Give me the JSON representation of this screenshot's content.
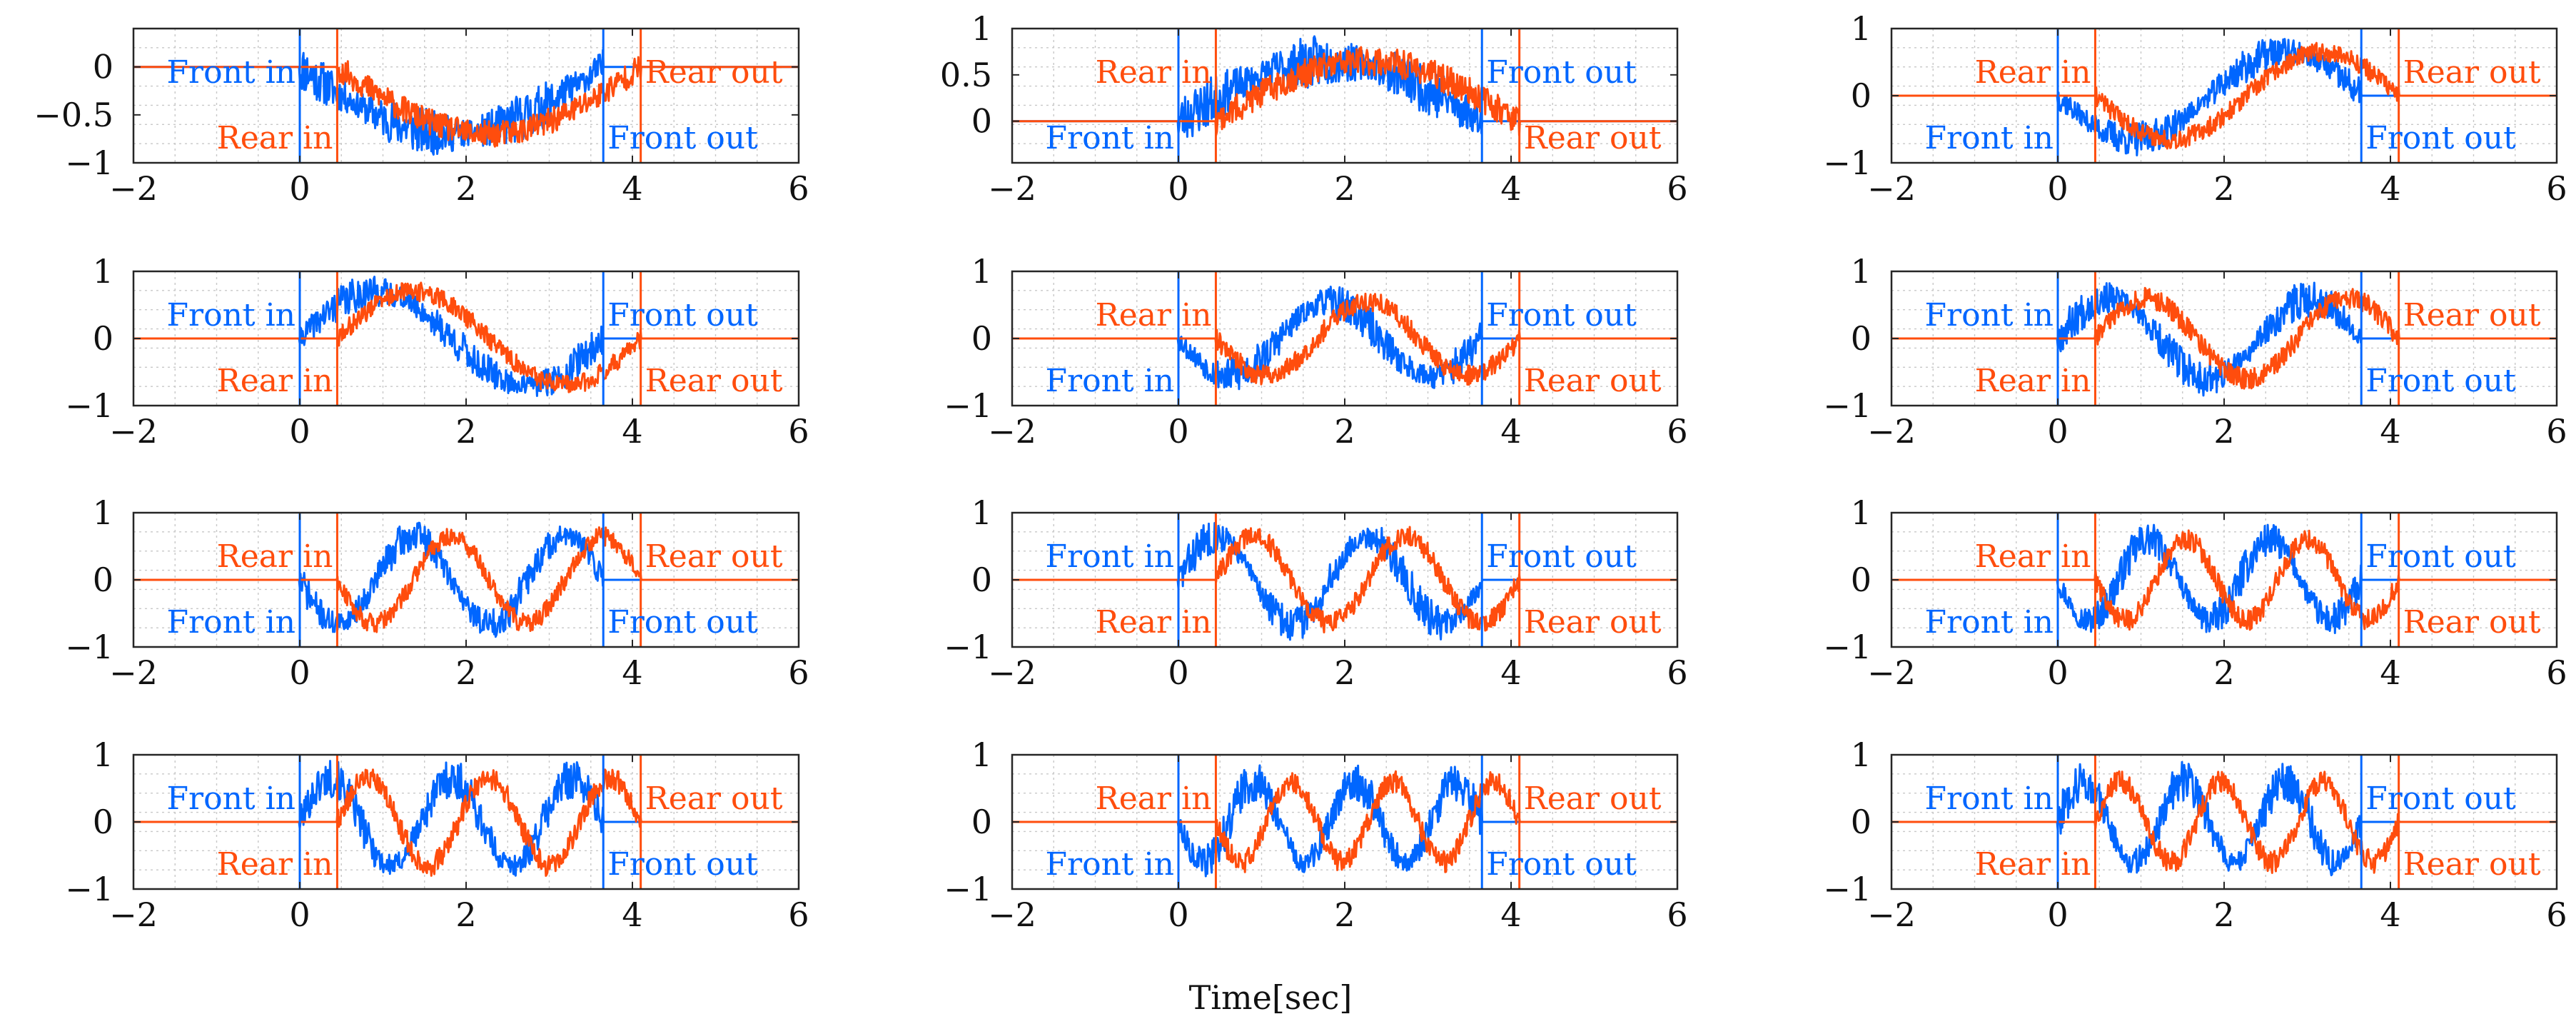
{
  "figure": {
    "xlabel": "Time[sec]",
    "colors": {
      "front": "#0066ff",
      "rear": "#ff4d0d",
      "axis": "#262626",
      "grid": "#c8c8c8"
    }
  },
  "chart_data": [
    {
      "type": "line",
      "panel": "r1c1",
      "xlim": [
        -2,
        6
      ],
      "ylim": [
        -1,
        0.4
      ],
      "xticks": [
        -2,
        0,
        2,
        4,
        6
      ],
      "xtick_labels": [
        "−2",
        "0",
        "2",
        "4",
        "6"
      ],
      "yticks": [
        0,
        -0.5,
        -1
      ],
      "ytick_labels": [
        "0",
        "−0.5",
        "−1"
      ],
      "grid": true,
      "params": {
        "amp": 0.7,
        "cycles": 0.5,
        "sign": -1,
        "noise": 0.25,
        "seed": 11
      },
      "event_lines": {
        "front_in": 0,
        "rear_in": 0.45,
        "front_out": 3.65,
        "rear_out": 4.1
      },
      "annotations": [
        {
          "text": "Front in",
          "series": "front",
          "side": "left",
          "pos": "upper"
        },
        {
          "text": "Rear in",
          "series": "rear",
          "side": "left",
          "pos": "lower"
        },
        {
          "text": "Rear out",
          "series": "rear",
          "side": "right",
          "pos": "upper"
        },
        {
          "text": "Front out",
          "series": "front",
          "side": "right",
          "pos": "lower"
        }
      ],
      "series": [
        {
          "name": "Front",
          "color": "#0066ff"
        },
        {
          "name": "Rear",
          "color": "#ff4d0d"
        }
      ]
    },
    {
      "type": "line",
      "panel": "r1c2",
      "xlim": [
        -2,
        6
      ],
      "ylim": [
        -0.45,
        1
      ],
      "xticks": [
        -2,
        0,
        2,
        4,
        6
      ],
      "xtick_labels": [
        "−2",
        "0",
        "2",
        "4",
        "6"
      ],
      "yticks": [
        1,
        0.5,
        0
      ],
      "ytick_labels": [
        "1",
        "0.5",
        "0"
      ],
      "grid": true,
      "params": {
        "amp": 0.65,
        "cycles": 0.5,
        "sign": 1,
        "noise": 0.28,
        "seed": 23
      },
      "event_lines": {
        "front_in": 0,
        "rear_in": 0.45,
        "front_out": 3.65,
        "rear_out": 4.1
      },
      "annotations": [
        {
          "text": "Rear in",
          "series": "rear",
          "side": "left",
          "pos": "upper"
        },
        {
          "text": "Front in",
          "series": "front",
          "side": "left",
          "pos": "lower"
        },
        {
          "text": "Front out",
          "series": "front",
          "side": "right",
          "pos": "upper"
        },
        {
          "text": "Rear out",
          "series": "rear",
          "side": "right",
          "pos": "lower"
        }
      ],
      "series": [
        {
          "name": "Front",
          "color": "#0066ff"
        },
        {
          "name": "Rear",
          "color": "#ff4d0d"
        }
      ]
    },
    {
      "type": "line",
      "panel": "r1c3",
      "xlim": [
        -2,
        6
      ],
      "ylim": [
        -1,
        1
      ],
      "xticks": [
        -2,
        0,
        2,
        4,
        6
      ],
      "xtick_labels": [
        "−2",
        "0",
        "2",
        "4",
        "6"
      ],
      "yticks": [
        1,
        0,
        -1
      ],
      "ytick_labels": [
        "1",
        "0",
        "−1"
      ],
      "grid": true,
      "params": {
        "amp": 0.65,
        "cycles": 1,
        "sign": -1,
        "noise": 0.26,
        "seed": 37
      },
      "event_lines": {
        "front_in": 0,
        "rear_in": 0.45,
        "front_out": 3.65,
        "rear_out": 4.1
      },
      "annotations": [
        {
          "text": "Rear in",
          "series": "rear",
          "side": "left",
          "pos": "upper"
        },
        {
          "text": "Front in",
          "series": "front",
          "side": "left",
          "pos": "lower"
        },
        {
          "text": "Rear out",
          "series": "rear",
          "side": "right",
          "pos": "upper"
        },
        {
          "text": "Front out",
          "series": "front",
          "side": "right",
          "pos": "lower"
        }
      ],
      "series": [
        {
          "name": "Front",
          "color": "#0066ff"
        },
        {
          "name": "Rear",
          "color": "#ff4d0d"
        }
      ]
    },
    {
      "type": "line",
      "panel": "r2c1",
      "xlim": [
        -2,
        6
      ],
      "ylim": [
        -1,
        1
      ],
      "xticks": [
        -2,
        0,
        2,
        4,
        6
      ],
      "xtick_labels": [
        "−2",
        "0",
        "2",
        "4",
        "6"
      ],
      "yticks": [
        1,
        0,
        -1
      ],
      "ytick_labels": [
        "1",
        "0",
        "−1"
      ],
      "grid": true,
      "params": {
        "amp": 0.7,
        "cycles": 1,
        "sign": 1,
        "noise": 0.26,
        "seed": 41
      },
      "event_lines": {
        "front_in": 0,
        "rear_in": 0.45,
        "front_out": 3.65,
        "rear_out": 4.1
      },
      "annotations": [
        {
          "text": "Front in",
          "series": "front",
          "side": "left",
          "pos": "upper"
        },
        {
          "text": "Rear in",
          "series": "rear",
          "side": "left",
          "pos": "lower"
        },
        {
          "text": "Front out",
          "series": "front",
          "side": "right",
          "pos": "upper"
        },
        {
          "text": "Rear out",
          "series": "rear",
          "side": "right",
          "pos": "lower"
        }
      ],
      "series": [
        {
          "name": "Front",
          "color": "#0066ff"
        },
        {
          "name": "Rear",
          "color": "#ff4d0d"
        }
      ]
    },
    {
      "type": "line",
      "panel": "r2c2",
      "xlim": [
        -2,
        6
      ],
      "ylim": [
        -1,
        1
      ],
      "xticks": [
        -2,
        0,
        2,
        4,
        6
      ],
      "xtick_labels": [
        "−2",
        "0",
        "2",
        "4",
        "6"
      ],
      "yticks": [
        1,
        0,
        -1
      ],
      "ytick_labels": [
        "1",
        "0",
        "−1"
      ],
      "grid": true,
      "params": {
        "amp": 0.55,
        "cycles": 1.5,
        "sign": -1,
        "noise": 0.28,
        "seed": 53
      },
      "event_lines": {
        "front_in": 0,
        "rear_in": 0.45,
        "front_out": 3.65,
        "rear_out": 4.1
      },
      "annotations": [
        {
          "text": "Rear in",
          "series": "rear",
          "side": "left",
          "pos": "upper"
        },
        {
          "text": "Front in",
          "series": "front",
          "side": "left",
          "pos": "lower"
        },
        {
          "text": "Front out",
          "series": "front",
          "side": "right",
          "pos": "upper"
        },
        {
          "text": "Rear out",
          "series": "rear",
          "side": "right",
          "pos": "lower"
        }
      ],
      "series": [
        {
          "name": "Front",
          "color": "#0066ff"
        },
        {
          "name": "Rear",
          "color": "#ff4d0d"
        }
      ]
    },
    {
      "type": "line",
      "panel": "r2c3",
      "xlim": [
        -2,
        6
      ],
      "ylim": [
        -1,
        1
      ],
      "xticks": [
        -2,
        0,
        2,
        4,
        6
      ],
      "xtick_labels": [
        "−2",
        "0",
        "2",
        "4",
        "6"
      ],
      "yticks": [
        1,
        0,
        -1
      ],
      "ytick_labels": [
        "1",
        "0",
        "−1"
      ],
      "grid": true,
      "params": {
        "amp": 0.6,
        "cycles": 1.5,
        "sign": 1,
        "noise": 0.28,
        "seed": 67
      },
      "event_lines": {
        "front_in": 0,
        "rear_in": 0.45,
        "front_out": 3.65,
        "rear_out": 4.1
      },
      "annotations": [
        {
          "text": "Front in",
          "series": "front",
          "side": "left",
          "pos": "upper"
        },
        {
          "text": "Rear in",
          "series": "rear",
          "side": "left",
          "pos": "lower"
        },
        {
          "text": "Rear out",
          "series": "rear",
          "side": "right",
          "pos": "upper"
        },
        {
          "text": "Front out",
          "series": "front",
          "side": "right",
          "pos": "lower"
        }
      ],
      "series": [
        {
          "name": "Front",
          "color": "#0066ff"
        },
        {
          "name": "Rear",
          "color": "#ff4d0d"
        }
      ]
    },
    {
      "type": "line",
      "panel": "r3c1",
      "xlim": [
        -2,
        6
      ],
      "ylim": [
        -1,
        1
      ],
      "xticks": [
        -2,
        0,
        2,
        4,
        6
      ],
      "xtick_labels": [
        "−2",
        "0",
        "2",
        "4",
        "6"
      ],
      "yticks": [
        1,
        0,
        -1
      ],
      "ytick_labels": [
        "1",
        "0",
        "−1"
      ],
      "grid": true,
      "params": {
        "amp": 0.65,
        "cycles": 2,
        "sign": -1,
        "noise": 0.26,
        "seed": 71
      },
      "event_lines": {
        "front_in": 0,
        "rear_in": 0.45,
        "front_out": 3.65,
        "rear_out": 4.1
      },
      "annotations": [
        {
          "text": "Rear in",
          "series": "rear",
          "side": "left",
          "pos": "upper"
        },
        {
          "text": "Front in",
          "series": "front",
          "side": "left",
          "pos": "lower"
        },
        {
          "text": "Rear out",
          "series": "rear",
          "side": "right",
          "pos": "upper"
        },
        {
          "text": "Front out",
          "series": "front",
          "side": "right",
          "pos": "lower"
        }
      ],
      "series": [
        {
          "name": "Front",
          "color": "#0066ff"
        },
        {
          "name": "Rear",
          "color": "#ff4d0d"
        }
      ]
    },
    {
      "type": "line",
      "panel": "r3c2",
      "xlim": [
        -2,
        6
      ],
      "ylim": [
        -1,
        1
      ],
      "xticks": [
        -2,
        0,
        2,
        4,
        6
      ],
      "xtick_labels": [
        "−2",
        "0",
        "2",
        "4",
        "6"
      ],
      "yticks": [
        1,
        0,
        -1
      ],
      "ytick_labels": [
        "1",
        "0",
        "−1"
      ],
      "grid": true,
      "params": {
        "amp": 0.65,
        "cycles": 2,
        "sign": 1,
        "noise": 0.28,
        "seed": 83
      },
      "event_lines": {
        "front_in": 0,
        "rear_in": 0.45,
        "front_out": 3.65,
        "rear_out": 4.1
      },
      "annotations": [
        {
          "text": "Front in",
          "series": "front",
          "side": "left",
          "pos": "upper"
        },
        {
          "text": "Rear in",
          "series": "rear",
          "side": "left",
          "pos": "lower"
        },
        {
          "text": "Front out",
          "series": "front",
          "side": "right",
          "pos": "upper"
        },
        {
          "text": "Rear out",
          "series": "rear",
          "side": "right",
          "pos": "lower"
        }
      ],
      "series": [
        {
          "name": "Front",
          "color": "#0066ff"
        },
        {
          "name": "Rear",
          "color": "#ff4d0d"
        }
      ]
    },
    {
      "type": "line",
      "panel": "r3c3",
      "xlim": [
        -2,
        6
      ],
      "ylim": [
        -1,
        1
      ],
      "xticks": [
        -2,
        0,
        2,
        4,
        6
      ],
      "xtick_labels": [
        "−2",
        "0",
        "2",
        "4",
        "6"
      ],
      "yticks": [
        1,
        0,
        -1
      ],
      "ytick_labels": [
        "1",
        "0",
        "−1"
      ],
      "grid": true,
      "params": {
        "amp": 0.6,
        "cycles": 2.5,
        "sign": -1,
        "noise": 0.28,
        "seed": 97
      },
      "event_lines": {
        "front_in": 0,
        "rear_in": 0.45,
        "front_out": 3.65,
        "rear_out": 4.1
      },
      "annotations": [
        {
          "text": "Rear in",
          "series": "rear",
          "side": "left",
          "pos": "upper"
        },
        {
          "text": "Front in",
          "series": "front",
          "side": "left",
          "pos": "lower"
        },
        {
          "text": "Front out",
          "series": "front",
          "side": "right",
          "pos": "upper"
        },
        {
          "text": "Rear out",
          "series": "rear",
          "side": "right",
          "pos": "lower"
        }
      ],
      "series": [
        {
          "name": "Front",
          "color": "#0066ff"
        },
        {
          "name": "Rear",
          "color": "#ff4d0d"
        }
      ]
    },
    {
      "type": "line",
      "panel": "r4c1",
      "xlim": [
        -2,
        6
      ],
      "ylim": [
        -1,
        1
      ],
      "xticks": [
        -2,
        0,
        2,
        4,
        6
      ],
      "xtick_labels": [
        "−2",
        "0",
        "2",
        "4",
        "6"
      ],
      "yticks": [
        1,
        0,
        -1
      ],
      "ytick_labels": [
        "1",
        "0",
        "−1"
      ],
      "grid": true,
      "params": {
        "amp": 0.65,
        "cycles": 2.5,
        "sign": 1,
        "noise": 0.3,
        "seed": 101
      },
      "event_lines": {
        "front_in": 0,
        "rear_in": 0.45,
        "front_out": 3.65,
        "rear_out": 4.1
      },
      "annotations": [
        {
          "text": "Front in",
          "series": "front",
          "side": "left",
          "pos": "upper"
        },
        {
          "text": "Rear in",
          "series": "rear",
          "side": "left",
          "pos": "lower"
        },
        {
          "text": "Rear out",
          "series": "rear",
          "side": "right",
          "pos": "upper"
        },
        {
          "text": "Front out",
          "series": "front",
          "side": "right",
          "pos": "lower"
        }
      ],
      "series": [
        {
          "name": "Front",
          "color": "#0066ff"
        },
        {
          "name": "Rear",
          "color": "#ff4d0d"
        }
      ]
    },
    {
      "type": "line",
      "panel": "r4c2",
      "xlim": [
        -2,
        6
      ],
      "ylim": [
        -1,
        1
      ],
      "xticks": [
        -2,
        0,
        2,
        4,
        6
      ],
      "xtick_labels": [
        "−2",
        "0",
        "2",
        "4",
        "6"
      ],
      "yticks": [
        1,
        0,
        -1
      ],
      "ytick_labels": [
        "1",
        "0",
        "−1"
      ],
      "grid": true,
      "params": {
        "amp": 0.6,
        "cycles": 3,
        "sign": -1,
        "noise": 0.3,
        "seed": 113
      },
      "event_lines": {
        "front_in": 0,
        "rear_in": 0.45,
        "front_out": 3.65,
        "rear_out": 4.1
      },
      "annotations": [
        {
          "text": "Rear in",
          "series": "rear",
          "side": "left",
          "pos": "upper"
        },
        {
          "text": "Front in",
          "series": "front",
          "side": "left",
          "pos": "lower"
        },
        {
          "text": "Rear out",
          "series": "rear",
          "side": "right",
          "pos": "upper"
        },
        {
          "text": "Front out",
          "series": "front",
          "side": "right",
          "pos": "lower"
        }
      ],
      "series": [
        {
          "name": "Front",
          "color": "#0066ff"
        },
        {
          "name": "Rear",
          "color": "#ff4d0d"
        }
      ]
    },
    {
      "type": "line",
      "panel": "r4c3",
      "xlim": [
        -2,
        6
      ],
      "ylim": [
        -1,
        1
      ],
      "xticks": [
        -2,
        0,
        2,
        4,
        6
      ],
      "xtick_labels": [
        "−2",
        "0",
        "2",
        "4",
        "6"
      ],
      "yticks": [
        1,
        0,
        -1
      ],
      "ytick_labels": [
        "1",
        "0",
        "−1"
      ],
      "grid": true,
      "params": {
        "amp": 0.6,
        "cycles": 3,
        "sign": 1,
        "noise": 0.3,
        "seed": 127
      },
      "event_lines": {
        "front_in": 0,
        "rear_in": 0.45,
        "front_out": 3.65,
        "rear_out": 4.1
      },
      "annotations": [
        {
          "text": "Front in",
          "series": "front",
          "side": "left",
          "pos": "upper"
        },
        {
          "text": "Rear in",
          "series": "rear",
          "side": "left",
          "pos": "lower"
        },
        {
          "text": "Front out",
          "series": "front",
          "side": "right",
          "pos": "upper"
        },
        {
          "text": "Rear out",
          "series": "rear",
          "side": "right",
          "pos": "lower"
        }
      ],
      "series": [
        {
          "name": "Front",
          "color": "#0066ff"
        },
        {
          "name": "Rear",
          "color": "#ff4d0d"
        }
      ]
    }
  ]
}
